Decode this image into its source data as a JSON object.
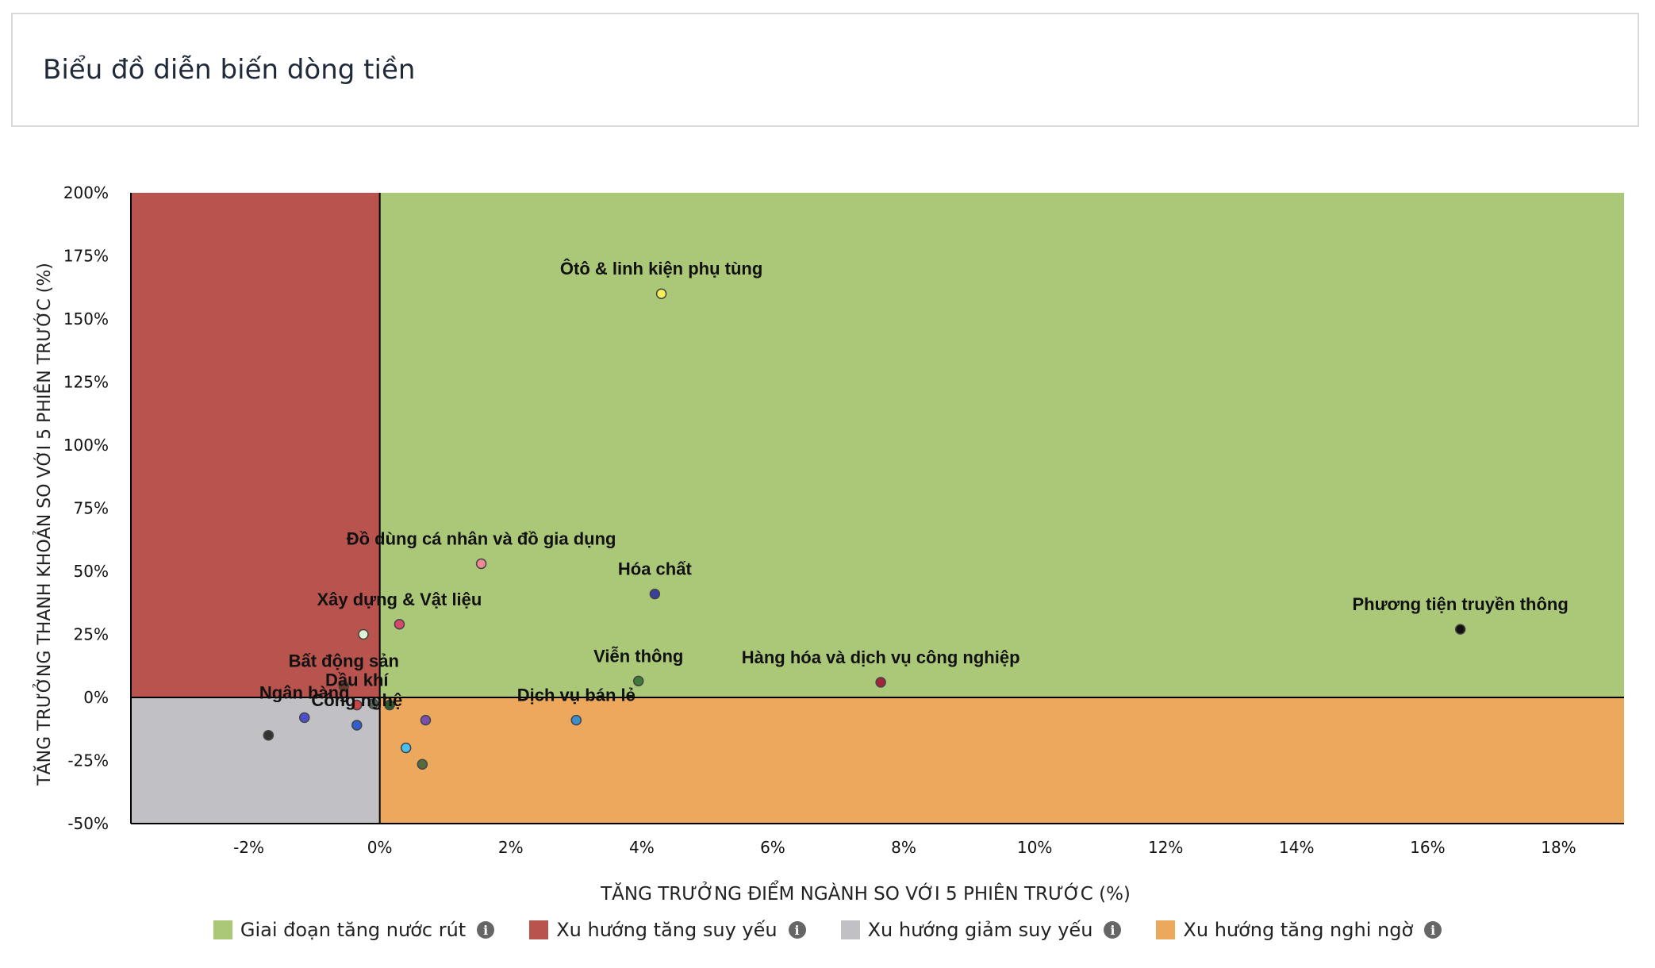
{
  "page": {
    "title": "Biểu đồ diễn biến dòng tiền"
  },
  "chart_data": {
    "type": "scatter",
    "xlabel": "TĂNG TRƯỞNG ĐIỂM NGÀNH SO VỚI 5 PHIÊN TRƯỚC (%)",
    "ylabel": "TĂNG TRƯỞNG THANH KHOẢN SO VỚI 5 PHIÊN TRƯỚC (%)",
    "xlim": [
      -3.8,
      19
    ],
    "ylim": [
      -50,
      200
    ],
    "x_ticks": [
      -2,
      0,
      2,
      4,
      6,
      8,
      10,
      12,
      14,
      16,
      18
    ],
    "x_tick_labels": [
      "-2%",
      "0%",
      "2%",
      "4%",
      "6%",
      "8%",
      "10%",
      "12%",
      "14%",
      "16%",
      "18%"
    ],
    "y_ticks": [
      200,
      175,
      150,
      125,
      100,
      75,
      50,
      25,
      0,
      -25,
      -50
    ],
    "y_tick_labels": [
      "200%",
      "175%",
      "150%",
      "125%",
      "100%",
      "75%",
      "50%",
      "25%",
      "0%",
      "-25%",
      "-50%"
    ],
    "quadrants": [
      {
        "name": "Giai đoạn tăng nước rút",
        "color": "#abc878",
        "x": [
          0,
          19
        ],
        "y": [
          0,
          200
        ]
      },
      {
        "name": "Xu hướng tăng suy yếu",
        "color": "#b9534d",
        "x": [
          -3.8,
          0
        ],
        "y": [
          0,
          200
        ]
      },
      {
        "name": "Xu hướng giảm suy yếu",
        "color": "#c0c0c5",
        "x": [
          -3.8,
          0
        ],
        "y": [
          -50,
          0
        ]
      },
      {
        "name": "Xu hướng tăng nghi ngờ",
        "color": "#eca95d",
        "x": [
          0,
          19
        ],
        "y": [
          -50,
          0
        ]
      }
    ],
    "points": [
      {
        "label": "Ôtô & linh kiện phụ tùng",
        "x": 4.3,
        "y": 160,
        "color": "#f5f05a"
      },
      {
        "label": "Đồ dùng cá nhân và đồ gia dụng",
        "x": 1.55,
        "y": 53,
        "color": "#f08a96"
      },
      {
        "label": "Hóa chất",
        "x": 4.2,
        "y": 41,
        "color": "#3a3f9a"
      },
      {
        "label": "Xây dựng & Vật liệu",
        "x": 0.3,
        "y": 29,
        "color": "#d8466a"
      },
      {
        "label": "",
        "x": -0.25,
        "y": 25,
        "color": "#dff2d6"
      },
      {
        "label": "Phương tiện truyền thông",
        "x": 16.5,
        "y": 27,
        "color": "#111111"
      },
      {
        "label": "Viễn thông",
        "x": 3.95,
        "y": 6.5,
        "color": "#3e7a3a"
      },
      {
        "label": "Hàng hóa và dịch vụ công nghiệp",
        "x": 7.65,
        "y": 6,
        "color": "#a3223c"
      },
      {
        "label": "Bất động sản",
        "x": -0.55,
        "y": 4.5,
        "color": "#6b3a2a"
      },
      {
        "label": "Dịch vụ bán lẻ",
        "x": 3.0,
        "y": -9,
        "color": "#3b8fd0"
      },
      {
        "label": "Dầu khí",
        "x": -0.35,
        "y": -3,
        "color": "#cc4444"
      },
      {
        "label": "",
        "x": 0.15,
        "y": -3,
        "color": "#2d5a2d"
      },
      {
        "label": "",
        "x": -0.1,
        "y": -2.5,
        "color": "#556655"
      },
      {
        "label": "Ngân hàng",
        "x": -1.15,
        "y": -8,
        "color": "#4b4fcf"
      },
      {
        "label": "Công nghệ",
        "x": -0.35,
        "y": -11,
        "color": "#2f5fcf"
      },
      {
        "label": "",
        "x": 0.7,
        "y": -9,
        "color": "#7a4fb0"
      },
      {
        "label": "",
        "x": -1.7,
        "y": -15,
        "color": "#333333"
      },
      {
        "label": "",
        "x": 0.4,
        "y": -20,
        "color": "#4ac0ef"
      },
      {
        "label": "",
        "x": 0.65,
        "y": -26.5,
        "color": "#556b3f"
      }
    ]
  },
  "legend": {
    "items": [
      {
        "label": "Giai đoạn tăng nước rút",
        "color": "#abc878",
        "icon": "info-icon"
      },
      {
        "label": "Xu hướng tăng suy yếu",
        "color": "#b9534d",
        "icon": "info-icon"
      },
      {
        "label": "Xu hướng giảm suy yếu",
        "color": "#c0c0c5",
        "icon": "info-icon"
      },
      {
        "label": "Xu hướng tăng nghi ngờ",
        "color": "#eca95d",
        "icon": "info-icon"
      }
    ],
    "info_glyph": "i"
  }
}
